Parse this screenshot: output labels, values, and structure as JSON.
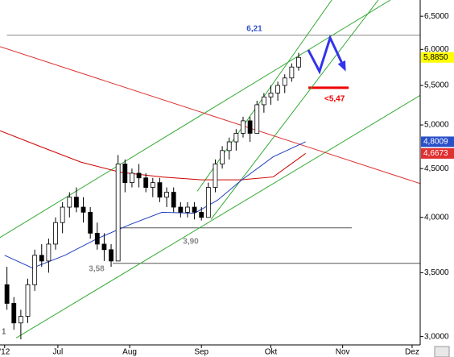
{
  "chart_data": {
    "type": "candlestick",
    "log_y": true,
    "xlim": [
      158,
      339.5
    ],
    "ylim": [
      2.94,
      6.76
    ],
    "xticks": [
      {
        "value": 160,
        "label": "'12"
      },
      {
        "value": 183,
        "label": "Jul"
      },
      {
        "value": 214,
        "label": "Aug"
      },
      {
        "value": 245,
        "label": "Sep"
      },
      {
        "value": 275,
        "label": "Okt"
      },
      {
        "value": 306,
        "label": "Nov"
      },
      {
        "value": 336,
        "label": "Dez"
      }
    ],
    "yticks": [
      {
        "value": 3,
        "label": "3,0000"
      },
      {
        "value": 3.5,
        "label": "3,5000"
      },
      {
        "value": 4,
        "label": "4,0000"
      },
      {
        "value": 4.5,
        "label": "4,5000"
      },
      {
        "value": 5,
        "label": "5,0000"
      },
      {
        "value": 5.5,
        "label": "5,5000"
      },
      {
        "value": 6,
        "label": "6,0000"
      },
      {
        "value": 6.5,
        "label": "6,5000"
      }
    ],
    "candles": {
      "x": [
        161,
        164,
        167,
        170,
        173,
        176,
        179,
        182,
        185,
        188,
        191,
        194,
        197,
        200,
        203,
        206,
        209,
        212,
        215,
        218,
        221,
        224,
        227,
        230,
        233,
        236,
        239,
        242,
        245,
        248,
        251,
        254,
        257,
        260,
        263,
        266,
        269,
        272,
        275,
        278,
        281,
        284,
        287
      ],
      "open": [
        3.4,
        3.25,
        3.1,
        3.15,
        3.4,
        3.65,
        3.6,
        3.75,
        3.95,
        4.1,
        4.2,
        4.1,
        4.05,
        3.85,
        3.75,
        3.7,
        3.6,
        4.55,
        4.35,
        4.45,
        4.4,
        4.3,
        4.35,
        4.2,
        4.25,
        4.1,
        4.05,
        4.1,
        4.05,
        4.0,
        4.3,
        4.55,
        4.7,
        4.8,
        4.9,
        5.05,
        4.9,
        5.25,
        5.35,
        5.4,
        5.5,
        5.6,
        5.75
      ],
      "high": [
        3.55,
        3.3,
        3.2,
        3.45,
        3.7,
        3.75,
        3.8,
        4.0,
        4.15,
        4.25,
        4.3,
        4.2,
        4.1,
        3.95,
        3.85,
        3.75,
        4.65,
        4.6,
        4.5,
        4.55,
        4.45,
        4.4,
        4.4,
        4.3,
        4.3,
        4.15,
        4.15,
        4.15,
        4.1,
        4.35,
        4.6,
        4.75,
        4.85,
        4.95,
        5.1,
        5.1,
        5.3,
        5.4,
        5.5,
        5.55,
        5.65,
        5.8,
        5.95
      ],
      "low": [
        3.2,
        3.05,
        2.98,
        3.1,
        3.35,
        3.55,
        3.5,
        3.7,
        3.85,
        4.0,
        4.05,
        3.95,
        3.8,
        3.7,
        3.6,
        3.55,
        3.6,
        4.25,
        4.3,
        4.3,
        4.25,
        4.2,
        4.15,
        4.1,
        4.05,
        4.0,
        4.0,
        3.98,
        3.97,
        4.0,
        4.25,
        4.5,
        4.6,
        4.7,
        4.85,
        4.8,
        4.9,
        5.15,
        5.25,
        5.3,
        5.4,
        5.55,
        5.7
      ],
      "close": [
        3.25,
        3.1,
        3.15,
        3.4,
        3.65,
        3.6,
        3.75,
        3.95,
        4.1,
        4.2,
        4.1,
        4.05,
        3.85,
        3.75,
        3.7,
        3.6,
        4.55,
        4.35,
        4.45,
        4.4,
        4.3,
        4.35,
        4.2,
        4.25,
        4.1,
        4.05,
        4.1,
        4.05,
        4.0,
        4.3,
        4.55,
        4.7,
        4.8,
        4.9,
        5.05,
        4.9,
        5.25,
        5.35,
        5.4,
        5.5,
        5.6,
        5.75,
        5.885
      ],
      "last_label": "5,8850",
      "last_label_color": "#ffff00",
      "last_text_color": "#000000"
    },
    "series": [
      {
        "color": "#cc0000",
        "x": [
          158,
          175,
          193,
          210,
          228,
          245,
          262,
          276,
          290
        ],
        "values": [
          4.93,
          4.75,
          4.57,
          4.46,
          4.41,
          4.38,
          4.38,
          4.41,
          4.6673
        ],
        "last_label": "4,6673",
        "last_label_color": "#e03030",
        "last_text_color": "#ffffff"
      },
      {
        "color": "#1f3fbf",
        "x": [
          160,
          172,
          186,
          200,
          214,
          228,
          242,
          252,
          262,
          276,
          290
        ],
        "values": [
          3.65,
          3.54,
          3.65,
          3.8,
          3.93,
          4.05,
          4.04,
          4.17,
          4.37,
          4.63,
          4.8009
        ],
        "last_label": "4,8009",
        "last_label_color": "#2a50c8",
        "last_text_color": "#ffffff"
      }
    ],
    "trendlines": [
      {
        "color": "#33aa33",
        "x": [
          165,
          339.5
        ],
        "values": [
          2.99,
          5.37
        ]
      },
      {
        "color": "#33aa33",
        "x": [
          158,
          326.6
        ],
        "values": [
          3.81,
          6.76
        ]
      },
      {
        "color": "#33aa33",
        "x": [
          243.2,
          301.3
        ],
        "values": [
          4.26,
          6.76
        ]
      },
      {
        "color": "#33aa33",
        "x": [
          249.1,
          321.4
        ],
        "values": [
          3.98,
          6.76
        ]
      },
      {
        "color": "#dd3333",
        "x": [
          158,
          339.5
        ],
        "values": [
          6.04,
          4.34
        ]
      }
    ],
    "levels": [
      {
        "value": 6.21,
        "label": "6,21",
        "x": [
          161,
          339.5
        ],
        "color": "#888888",
        "label_color": "#3355cc"
      },
      {
        "value": 3.9,
        "label": "3,90",
        "x": [
          209.5,
          310
        ],
        "color": "#555555",
        "label_color": "#888888"
      },
      {
        "value": 3.58,
        "label": "3,58",
        "x": [
          206.7,
          339.5
        ],
        "color": "#555555",
        "label_color": "#888888"
      },
      {
        "value": 5.47,
        "label": "<5,47",
        "x": [
          291.2,
          308.6
        ],
        "color": "#ee0000",
        "label_color": "#ee0000"
      }
    ],
    "projection": {
      "color": "#3333ee",
      "x": [
        291.2,
        296.0,
        300.6,
        306.8
      ],
      "values": [
        5.99,
        5.69,
        6.17,
        5.73
      ]
    },
    "corner_text": "1"
  }
}
